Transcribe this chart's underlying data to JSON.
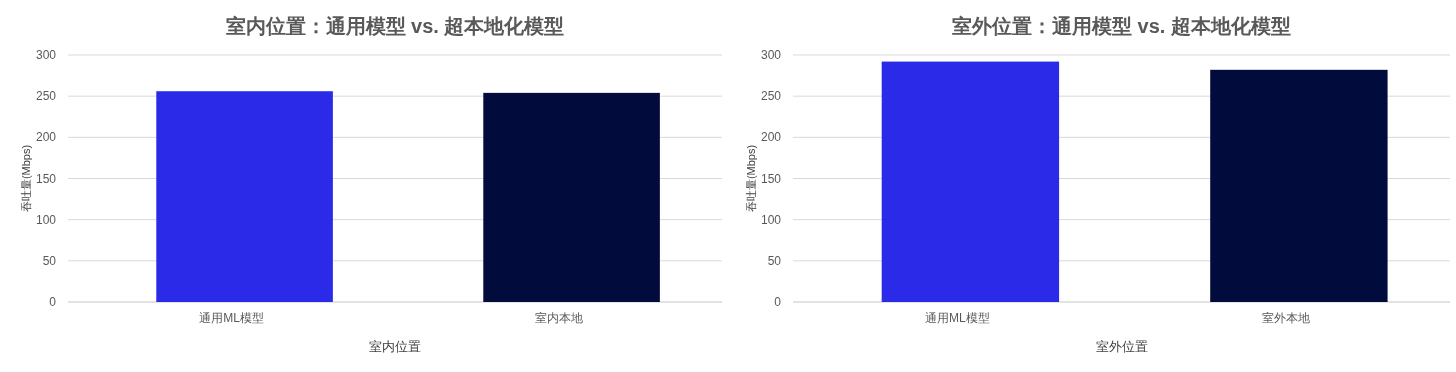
{
  "chart_data": [
    {
      "type": "bar",
      "title": "室内位置：通用模型 vs. 超本地化模型",
      "xlabel": "室内位置",
      "ylabel": "吞吐量(Mbps)",
      "categories": [
        "通用ML模型",
        "室内本地"
      ],
      "values": [
        256,
        254
      ],
      "colors": [
        "#2a2ae8",
        "#020c3c"
      ],
      "ylim": [
        0,
        300
      ],
      "yticks": [
        0,
        50,
        100,
        150,
        200,
        250,
        300
      ],
      "grid": "y"
    },
    {
      "type": "bar",
      "title": "室外位置：通用模型 vs. 超本地化模型",
      "xlabel": "室外位置",
      "ylabel": "吞吐量(Mbps)",
      "categories": [
        "通用ML模型",
        "室外本地"
      ],
      "values": [
        292,
        282
      ],
      "colors": [
        "#2a2ae8",
        "#020c3c"
      ],
      "ylim": [
        0,
        300
      ],
      "yticks": [
        0,
        50,
        100,
        150,
        200,
        250,
        300
      ],
      "grid": "y"
    }
  ]
}
